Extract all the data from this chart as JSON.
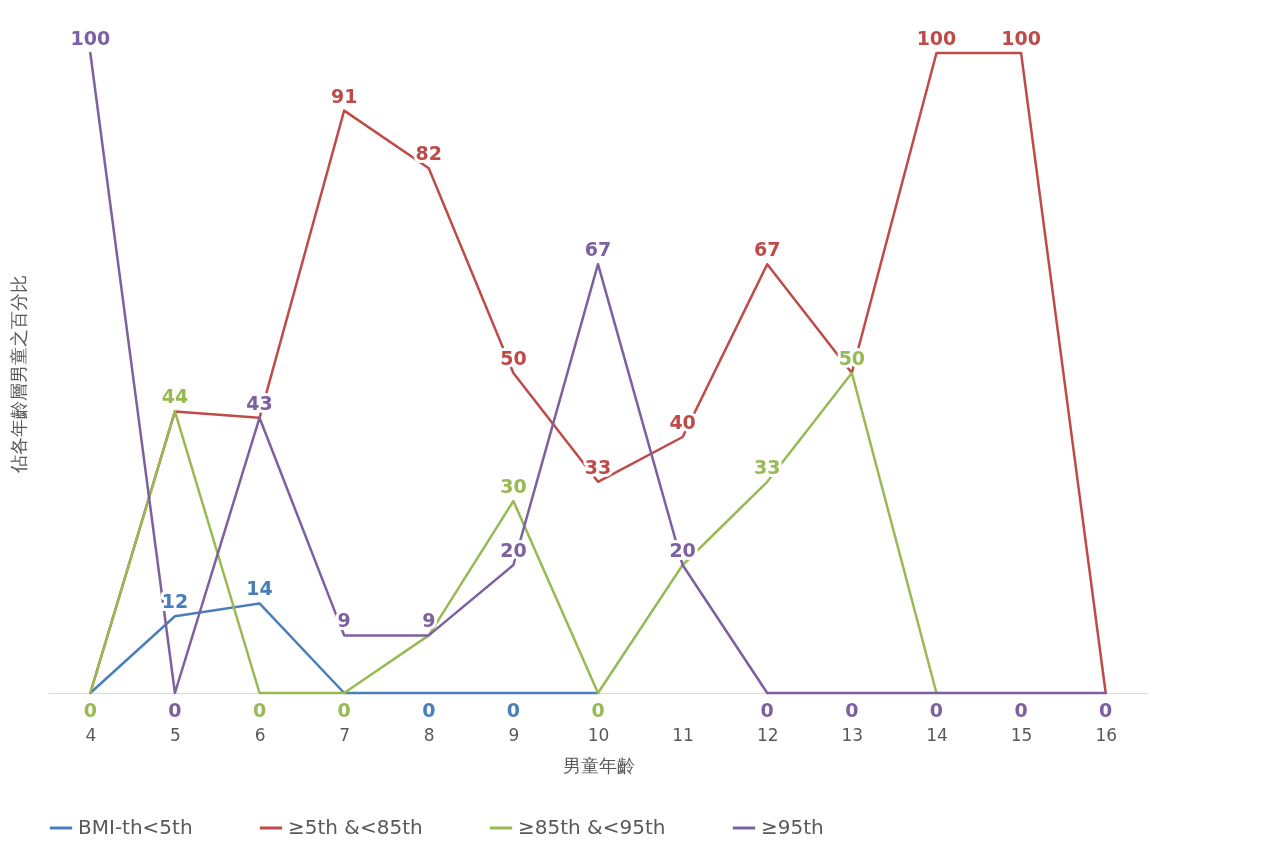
{
  "chart_data": {
    "type": "line",
    "xlabel": "男童年齡",
    "ylabel": "佔各年齡層男童之百分比",
    "categories": [
      "4",
      "5",
      "6",
      "7",
      "8",
      "9",
      "10",
      "11",
      "12",
      "13",
      "14",
      "15",
      "16"
    ],
    "series": [
      {
        "name": "BMI-th<5th",
        "color": "#4a7ebb",
        "values": [
          0,
          12,
          14,
          0,
          0,
          0,
          0,
          null,
          null,
          null,
          null,
          null,
          null
        ],
        "value_labels": [
          null,
          "12",
          "14",
          null,
          "0",
          "0",
          null,
          null,
          null,
          null,
          null,
          null,
          null
        ]
      },
      {
        "name": "≥5th &<85th",
        "color": "#be4b48",
        "values": [
          0,
          44,
          43,
          91,
          82,
          50,
          33,
          40,
          67,
          50,
          100,
          100,
          0
        ],
        "value_labels": [
          null,
          null,
          null,
          "91",
          "82",
          "50",
          "33",
          "40",
          "67",
          null,
          "100",
          "100",
          null
        ]
      },
      {
        "name": "≥85th &<95th",
        "color": "#98b954",
        "values": [
          0,
          44,
          0,
          0,
          9,
          30,
          0,
          20,
          33,
          50,
          0,
          null,
          null
        ],
        "value_labels": [
          "0",
          "44",
          "0",
          "0",
          null,
          "30",
          "0",
          null,
          "33",
          "50",
          null,
          null,
          null
        ]
      },
      {
        "name": "≥95th",
        "color": "#7d60a0",
        "values": [
          100,
          0,
          43,
          9,
          9,
          20,
          67,
          20,
          0,
          0,
          0,
          0,
          0
        ],
        "value_labels": [
          "100",
          "0",
          "43",
          "9",
          "9",
          "20",
          "67",
          "20",
          "0",
          "0",
          "0",
          "0",
          "0"
        ]
      }
    ],
    "tick_labels": "x",
    "legend": "bottom",
    "grid": false,
    "line_style": "solid",
    "marker": "none"
  }
}
